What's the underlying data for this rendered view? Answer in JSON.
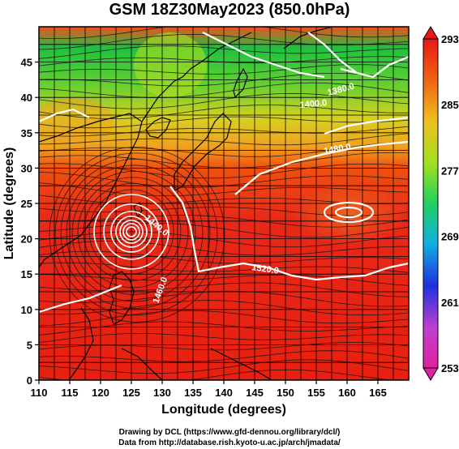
{
  "title": "GSM 18Z30May2023 (850.0hPa)",
  "x_axis": {
    "label": "Longitude (degrees)",
    "ticks": [
      "110",
      "115",
      "120",
      "125",
      "130",
      "135",
      "140",
      "145",
      "150",
      "155",
      "160",
      "165"
    ],
    "range": [
      110,
      170
    ]
  },
  "y_axis": {
    "label": "Latitude (degrees)",
    "ticks": [
      "0",
      "5",
      "10",
      "15",
      "20",
      "25",
      "30",
      "35",
      "40",
      "45"
    ],
    "range": [
      0,
      50
    ]
  },
  "colorbar": {
    "labels": [
      "293",
      "285",
      "277",
      "269",
      "261",
      "253"
    ],
    "colors": [
      "#e0207a",
      "#c040d0",
      "#2030e0",
      "#10b0e0",
      "#20d060",
      "#a0e020",
      "#f0c020",
      "#f06010",
      "#e01818"
    ]
  },
  "contour_labels": [
    "1440.0",
    "1520.0",
    "1480.0",
    "1380.0",
    "1400.0",
    "1460.0"
  ],
  "typhoon_center": {
    "lon": 125,
    "lat": 21
  },
  "credits": {
    "line1": "Drawing by DCL (https://www.gfd-dennou.org/library/dcl/)",
    "line2": "Data from http://database.rish.kyoto-u.ac.jp/arch/jmadata/"
  }
}
